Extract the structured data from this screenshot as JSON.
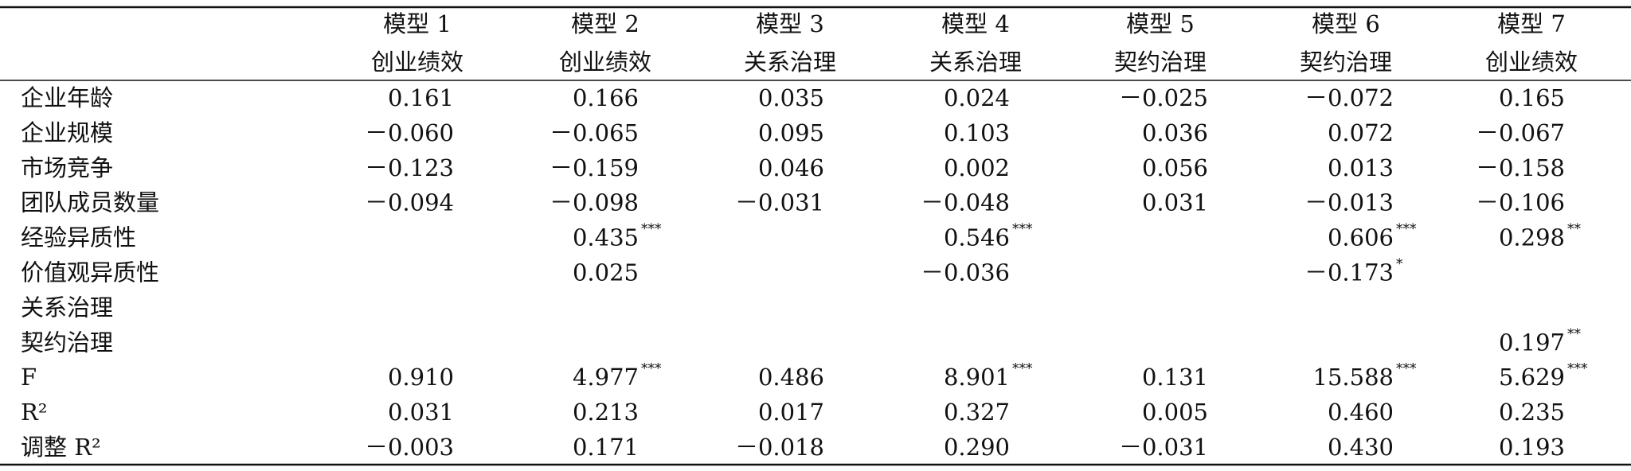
{
  "table": {
    "header": {
      "models": [
        "模型 1",
        "模型 2",
        "模型 3",
        "模型 4",
        "模型 5",
        "模型 6",
        "模型 7"
      ],
      "dependents": [
        "创业绩效",
        "创业绩效",
        "关系治理",
        "关系治理",
        "契约治理",
        "契约治理",
        "创业绩效"
      ]
    },
    "rows": [
      {
        "label": "企业年龄",
        "cells": [
          {
            "text": "0.161"
          },
          {
            "text": "0.166"
          },
          {
            "text": "0.035"
          },
          {
            "text": "0.024"
          },
          {
            "text": "－0.025"
          },
          {
            "text": "－0.072"
          },
          {
            "text": "0.165"
          }
        ]
      },
      {
        "label": "企业规模",
        "cells": [
          {
            "text": "－0.060"
          },
          {
            "text": "－0.065"
          },
          {
            "text": "0.095"
          },
          {
            "text": "0.103"
          },
          {
            "text": "0.036"
          },
          {
            "text": "0.072"
          },
          {
            "text": "－0.067"
          }
        ]
      },
      {
        "label": "市场竞争",
        "cells": [
          {
            "text": "－0.123"
          },
          {
            "text": "－0.159"
          },
          {
            "text": "0.046"
          },
          {
            "text": "0.002"
          },
          {
            "text": "0.056"
          },
          {
            "text": "0.013"
          },
          {
            "text": "－0.158"
          }
        ]
      },
      {
        "label": "团队成员数量",
        "cells": [
          {
            "text": "－0.094"
          },
          {
            "text": "－0.098"
          },
          {
            "text": "－0.031"
          },
          {
            "text": "－0.048"
          },
          {
            "text": "0.031"
          },
          {
            "text": "－0.013"
          },
          {
            "text": "－0.106"
          }
        ]
      },
      {
        "label": "经验异质性",
        "cells": [
          null,
          {
            "text": "0.435",
            "sig": "***"
          },
          null,
          {
            "text": "0.546",
            "sig": "***"
          },
          null,
          {
            "text": "0.606",
            "sig": "***"
          },
          {
            "text": "0.298",
            "sig": "**"
          }
        ]
      },
      {
        "label": "价值观异质性",
        "cells": [
          null,
          {
            "text": "0.025"
          },
          null,
          {
            "text": "－0.036"
          },
          null,
          {
            "text": "－0.173",
            "sig": "*"
          },
          null
        ]
      },
      {
        "label": "关系治理",
        "cells": [
          null,
          null,
          null,
          null,
          null,
          null,
          null
        ]
      },
      {
        "label": "契约治理",
        "cells": [
          null,
          null,
          null,
          null,
          null,
          null,
          {
            "text": "0.197",
            "sig": "**"
          }
        ]
      },
      {
        "label": "F",
        "cells": [
          {
            "text": "0.910"
          },
          {
            "text": "4.977",
            "sig": "***"
          },
          {
            "text": "0.486"
          },
          {
            "text": "8.901",
            "sig": "***"
          },
          {
            "text": "0.131"
          },
          {
            "text": "15.588",
            "sig": "***"
          },
          {
            "text": "5.629",
            "sig": "***"
          }
        ]
      },
      {
        "label": "R²",
        "cells": [
          {
            "text": "0.031"
          },
          {
            "text": "0.213"
          },
          {
            "text": "0.017"
          },
          {
            "text": "0.327"
          },
          {
            "text": "0.005"
          },
          {
            "text": "0.460"
          },
          {
            "text": "0.235"
          }
        ]
      },
      {
        "label": "调整 R²",
        "cells": [
          {
            "text": "－0.003"
          },
          {
            "text": "0.171"
          },
          {
            "text": "－0.018"
          },
          {
            "text": "0.290"
          },
          {
            "text": "－0.031"
          },
          {
            "text": "0.430"
          },
          {
            "text": "0.193"
          }
        ]
      }
    ]
  }
}
